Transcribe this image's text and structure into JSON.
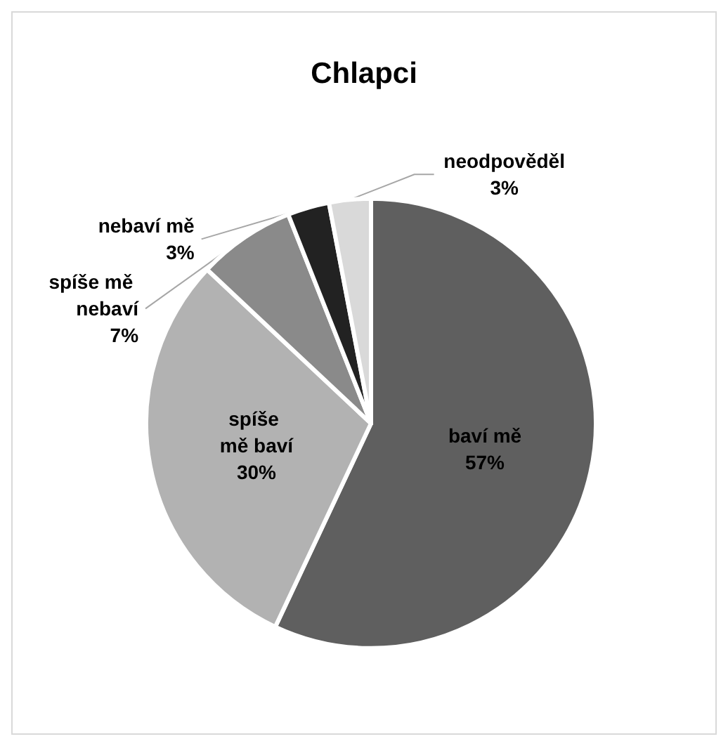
{
  "chart_data": {
    "type": "pie",
    "title": "Chlapci",
    "categories": [
      "baví mě",
      "spíše mě baví",
      "spíše mě nebaví",
      "nebaví mě",
      "neodpověděl"
    ],
    "values": [
      57,
      30,
      7,
      3,
      3
    ],
    "value_labels": [
      "57%",
      "30%",
      "7%",
      "3%",
      "3%"
    ],
    "colors": [
      "#5f5f5f",
      "#b2b2b2",
      "#8a8a8a",
      "#222222",
      "#d9d9d9"
    ],
    "legend": false
  }
}
